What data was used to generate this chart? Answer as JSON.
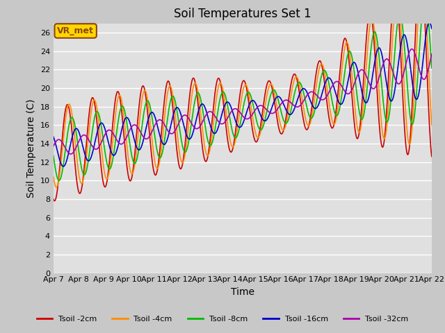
{
  "title": "Soil Temperatures Set 1",
  "xlabel": "Time",
  "ylabel": "Soil Temperature (C)",
  "xlim": [
    0,
    15
  ],
  "ylim": [
    0,
    27
  ],
  "yticks": [
    0,
    2,
    4,
    6,
    8,
    10,
    12,
    14,
    16,
    18,
    20,
    22,
    24,
    26
  ],
  "xtick_labels": [
    "Apr 7",
    "Apr 8",
    "Apr 9",
    "Apr 10",
    "Apr 11",
    "Apr 12",
    "Apr 13",
    "Apr 14",
    "Apr 15",
    "Apr 16",
    "Apr 17",
    "Apr 18",
    "Apr 19",
    "Apr 20",
    "Apr 21",
    "Apr 22"
  ],
  "annotation_text": "VR_met",
  "annotation_color": "#8B4513",
  "annotation_bg": "#FFD700",
  "fig_bg": "#C8C8C8",
  "plot_bg": "#E0E0E0",
  "colors": {
    "Tsoil -2cm": "#CC0000",
    "Tsoil -4cm": "#FF8C00",
    "Tsoil -8cm": "#00BB00",
    "Tsoil -16cm": "#0000CC",
    "Tsoil -32cm": "#AA00AA"
  },
  "series_names": [
    "Tsoil -2cm",
    "Tsoil -4cm",
    "Tsoil -8cm",
    "Tsoil -16cm",
    "Tsoil -32cm"
  ],
  "title_fontsize": 12,
  "label_fontsize": 10,
  "tick_fontsize": 8
}
